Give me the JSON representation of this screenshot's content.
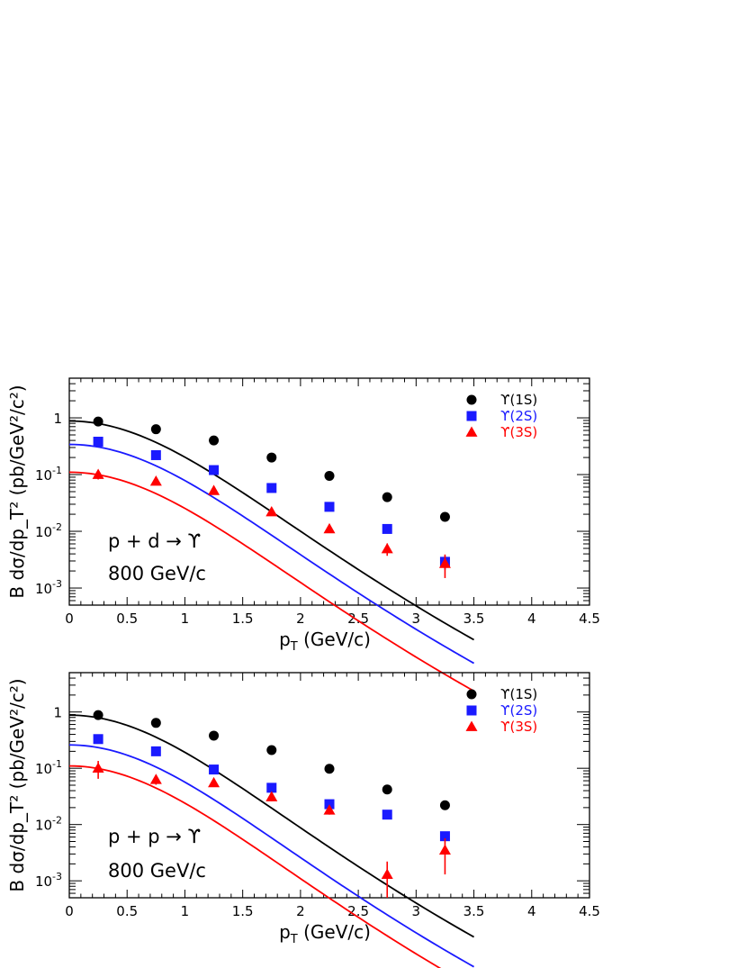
{
  "chart_data": [
    {
      "type": "scatter",
      "scale_y": "log",
      "xlim": [
        0,
        4.5
      ],
      "ylim": [
        0.0005,
        5
      ],
      "x_ticks": [
        "0",
        "0.5",
        "1",
        "1.5",
        "2",
        "2.5",
        "3",
        "3.5",
        "4",
        "4.5"
      ],
      "y_ticks": [
        {
          "base": "1",
          "exp": ""
        },
        {
          "base": "10",
          "exp": "-1"
        },
        {
          "base": "10",
          "exp": "-2"
        },
        {
          "base": "10",
          "exp": "-3"
        }
      ],
      "xlabel": {
        "main": "p",
        "sub": "T",
        "rest": " (GeV/c)"
      },
      "ylabel": "B dσ/dp_T² (pb/GeV²/c²)",
      "annotation": [
        "p + d → ϒ",
        "800 GeV/c"
      ],
      "legend_position": "top-right",
      "series": [
        {
          "name": "ϒ(1S)",
          "color": "#000000",
          "marker": "circle",
          "x": [
            0.25,
            0.75,
            1.25,
            1.75,
            2.25,
            2.75,
            3.25
          ],
          "y": [
            0.86,
            0.63,
            0.4,
            0.2,
            0.095,
            0.04,
            0.018
          ],
          "err": [
            0,
            0,
            0,
            0,
            0,
            0,
            0
          ],
          "fit": {
            "y0": 0.88,
            "b": 1.9
          }
        },
        {
          "name": "ϒ(2S)",
          "color": "#1a1aff",
          "marker": "square",
          "x": [
            0.25,
            0.75,
            1.25,
            1.75,
            2.25,
            2.75,
            3.25
          ],
          "y": [
            0.38,
            0.22,
            0.12,
            0.058,
            0.027,
            0.011,
            0.0029
          ],
          "err": [
            0,
            0,
            0,
            0,
            0,
            0,
            0.0008
          ],
          "fit": {
            "y0": 0.34,
            "b": 1.9
          }
        },
        {
          "name": "ϒ(3S)",
          "color": "#ff0000",
          "marker": "triangle",
          "x": [
            0.25,
            0.75,
            1.25,
            1.75,
            2.25,
            2.75,
            3.25
          ],
          "y": [
            0.1,
            0.076,
            0.052,
            0.022,
            0.011,
            0.0049,
            0.0027
          ],
          "err": [
            0.018,
            0.008,
            0.006,
            0.003,
            0.0015,
            0.0012,
            0.0012
          ],
          "fit": {
            "y0": 0.11,
            "b": 1.9
          }
        }
      ]
    },
    {
      "type": "scatter",
      "scale_y": "log",
      "xlim": [
        0,
        4.5
      ],
      "ylim": [
        0.0005,
        5
      ],
      "x_ticks": [
        "0",
        "0.5",
        "1",
        "1.5",
        "2",
        "2.5",
        "3",
        "3.5",
        "4",
        "4.5"
      ],
      "y_ticks": [
        {
          "base": "1",
          "exp": ""
        },
        {
          "base": "10",
          "exp": "-1"
        },
        {
          "base": "10",
          "exp": "-2"
        },
        {
          "base": "10",
          "exp": "-3"
        }
      ],
      "xlabel": {
        "main": "p",
        "sub": "T",
        "rest": " (GeV/c)"
      },
      "ylabel": "B dσ/dp_T² (pb/GeV²/c²)",
      "annotation": [
        "p + p → ϒ",
        "800 GeV/c"
      ],
      "legend_position": "top-right",
      "series": [
        {
          "name": "ϒ(1S)",
          "color": "#000000",
          "marker": "circle",
          "x": [
            0.25,
            0.75,
            1.25,
            1.75,
            2.25,
            2.75,
            3.25
          ],
          "y": [
            0.88,
            0.64,
            0.38,
            0.21,
            0.098,
            0.042,
            0.022
          ],
          "err": [
            0,
            0,
            0,
            0,
            0,
            0,
            0
          ],
          "fit": {
            "y0": 0.88,
            "b": 1.86
          }
        },
        {
          "name": "ϒ(2S)",
          "color": "#1a1aff",
          "marker": "square",
          "x": [
            0.25,
            0.75,
            1.25,
            1.75,
            2.25,
            2.75,
            3.25
          ],
          "y": [
            0.33,
            0.2,
            0.095,
            0.045,
            0.023,
            0.015,
            0.0062
          ],
          "err": [
            0,
            0,
            0,
            0,
            0,
            0,
            0
          ],
          "fit": {
            "y0": 0.26,
            "b": 1.86
          }
        },
        {
          "name": "ϒ(3S)",
          "color": "#ff0000",
          "marker": "triangle",
          "x": [
            0.25,
            0.75,
            1.25,
            1.75,
            2.25,
            2.75,
            3.25
          ],
          "y": [
            0.1,
            0.063,
            0.055,
            0.031,
            0.018,
            0.0013,
            0.0035
          ],
          "err": [
            0.035,
            0.012,
            0.007,
            0.005,
            0.003,
            0.0009,
            0.0022
          ],
          "fit": {
            "y0": 0.11,
            "b": 1.86
          }
        }
      ]
    }
  ]
}
